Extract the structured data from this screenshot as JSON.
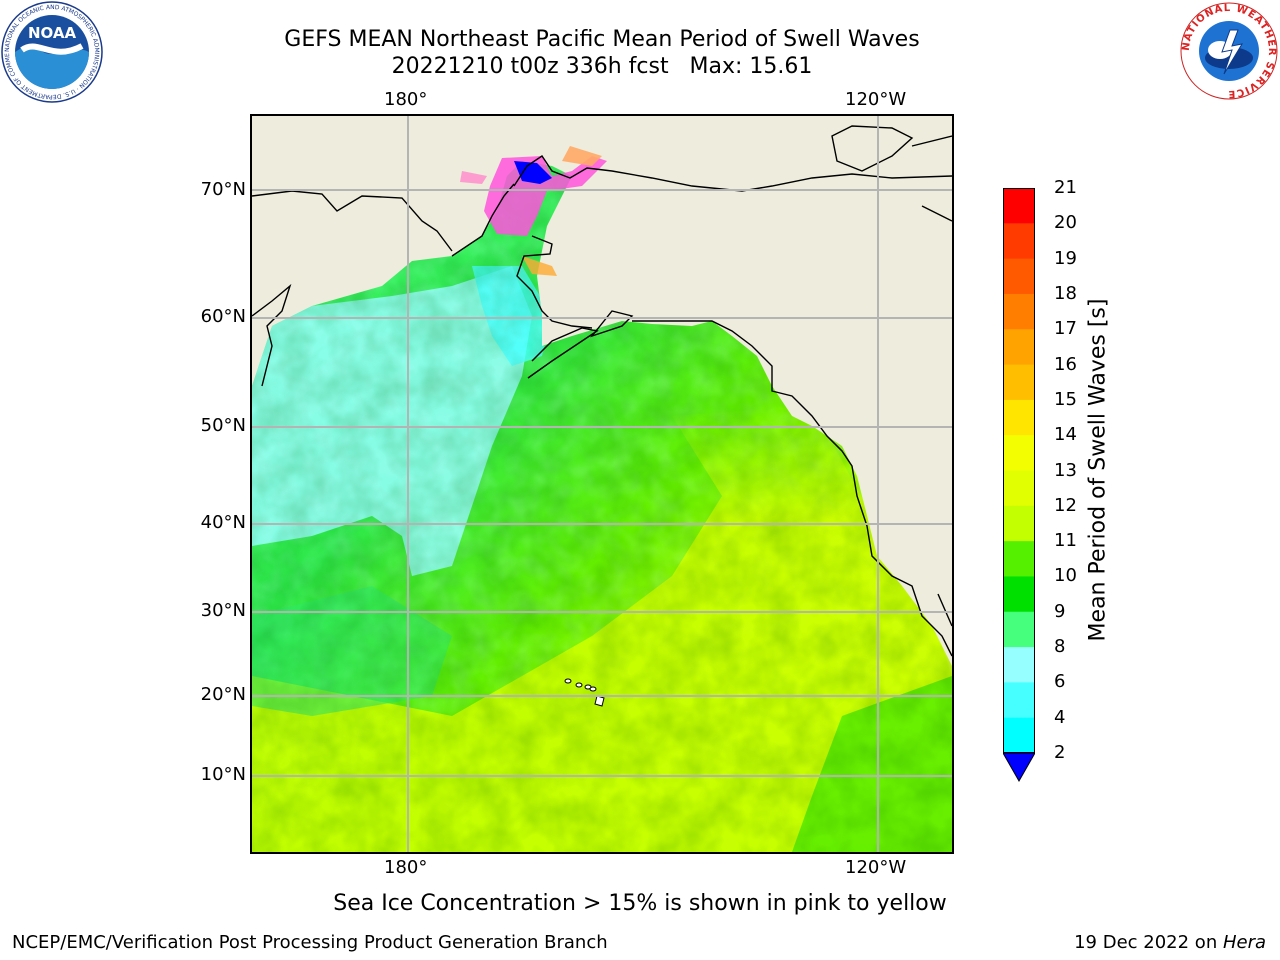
{
  "title": {
    "line1": "GEFS MEAN Northeast Pacific Mean Period of Swell Waves",
    "line2": "20221210 t00z 336h fcst   Max: 15.61"
  },
  "map": {
    "lon_labels_top": [
      "180°",
      "120°W"
    ],
    "lon_labels_bottom": [
      "180°",
      "120°W"
    ],
    "lat_labels": [
      "70°N",
      "60°N",
      "50°N",
      "40°N",
      "30°N",
      "20°N",
      "10°N"
    ],
    "colors": {
      "land": "#eeecdc",
      "coast": "#000000",
      "grid": "#b4b4b4",
      "ice_pink": "#ff55dd",
      "ice_yellow": "#ffdd44"
    }
  },
  "colorbar": {
    "label": "Mean Period of Swell Waves [s]",
    "ticks": [
      "21",
      "20",
      "19",
      "18",
      "17",
      "16",
      "15",
      "14",
      "13",
      "12",
      "11",
      "10",
      "9",
      "8",
      "6",
      "4",
      "2"
    ],
    "colors": [
      "#ff0000",
      "#ff3b00",
      "#ff5a00",
      "#ff7e00",
      "#ffa300",
      "#ffbe00",
      "#ffe500",
      "#f3ff00",
      "#e1ff00",
      "#c3ff00",
      "#55f000",
      "#00e000",
      "#46ff7d",
      "#96ffff",
      "#46ffff",
      "#00ffff",
      "#00c8ff",
      "#0064ff"
    ],
    "under_color": "#0000ff"
  },
  "footer": {
    "note": "Sea Ice Concentration > 15% is shown in pink to yellow",
    "left": "NCEP/EMC/Verification Post Processing Product Generation Branch",
    "right_prefix": "19 Dec 2022 on ",
    "right_host": "Hera"
  },
  "logos": {
    "noaa": {
      "text": "NOAA",
      "ring_text": "NATIONAL OCEANIC AND ATMOSPHERIC ADMINISTRATION · U.S. DEPARTMENT OF COMMERCE"
    },
    "nws": {
      "ring_text": "NATIONAL WEATHER SERVICE"
    }
  }
}
